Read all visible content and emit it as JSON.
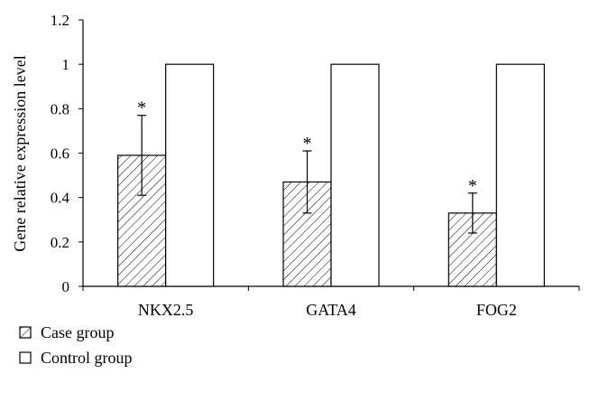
{
  "chart_data": {
    "type": "bar",
    "ylabel": "Gene relative expression level",
    "xlabel": "",
    "ylim": [
      0,
      1.2
    ],
    "yticks": [
      "0",
      "0.2",
      "0.4",
      "0.6",
      "0.8",
      "1",
      "1.2"
    ],
    "categories": [
      "NKX2.5",
      "GATA4",
      "FOG2"
    ],
    "series": [
      {
        "name": "Case group",
        "pattern": "diagonal-hatch",
        "values": [
          0.59,
          0.47,
          0.33
        ],
        "error": [
          0.18,
          0.14,
          0.09
        ],
        "significance": [
          "*",
          "*",
          "*"
        ]
      },
      {
        "name": "Control group",
        "pattern": "solid-white",
        "values": [
          1.0,
          1.0,
          1.0
        ]
      }
    ],
    "grid": false,
    "legend_position": "bottom-left",
    "colors": {
      "stroke": "#000000",
      "fill": "#ffffff"
    }
  }
}
